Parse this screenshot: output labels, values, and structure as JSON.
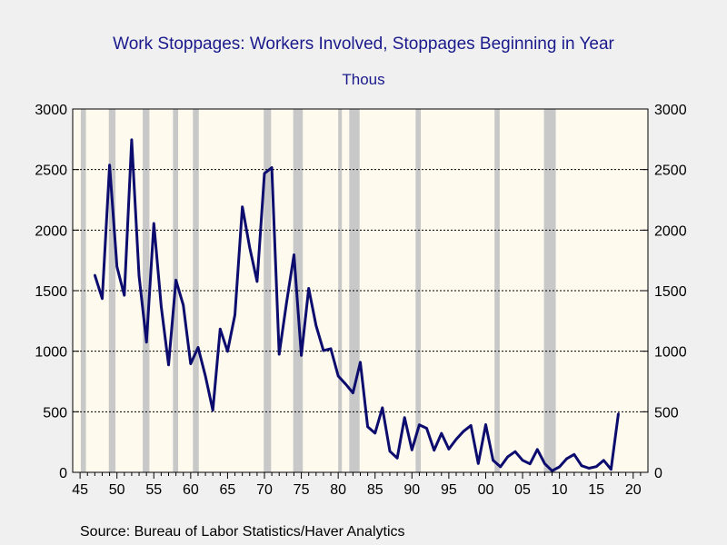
{
  "chart_data": {
    "type": "line",
    "title": "Work Stoppages: Workers Involved, Stoppages Beginning in Year",
    "subtitle": "Thous",
    "source": "Source:  Bureau of Labor Statistics/Haver Analytics",
    "x_ticks": [
      "45",
      "50",
      "55",
      "60",
      "65",
      "70",
      "75",
      "80",
      "85",
      "90",
      "95",
      "00",
      "05",
      "10",
      "15",
      "20"
    ],
    "y_ticks": [
      "0",
      "500",
      "1000",
      "1500",
      "2000",
      "2500",
      "3000"
    ],
    "ylim": [
      0,
      3000
    ],
    "xlim": [
      1944,
      2022
    ],
    "grid": "horizontal dashed",
    "line_color": "#0c0c6e",
    "plot_bg": "#fefaee",
    "recession_color": "#c8c8c8",
    "recessions": [
      [
        1945.1,
        1945.8
      ],
      [
        1948.9,
        1949.8
      ],
      [
        1953.5,
        1954.4
      ],
      [
        1957.6,
        1958.3
      ],
      [
        1960.3,
        1961.1
      ],
      [
        1969.9,
        1970.9
      ],
      [
        1973.9,
        1975.2
      ],
      [
        1980.0,
        1980.5
      ],
      [
        1981.5,
        1982.9
      ],
      [
        1990.5,
        1991.2
      ],
      [
        2001.2,
        2001.9
      ],
      [
        2007.9,
        2009.5
      ]
    ],
    "series": [
      {
        "x": [
          1947,
          1948,
          1949,
          1950,
          1951,
          1952,
          1953,
          1954,
          1955,
          1956,
          1957,
          1958,
          1959,
          1960,
          1961,
          1962,
          1963,
          1964,
          1965,
          1966,
          1967,
          1968,
          1969,
          1970,
          1971,
          1972,
          1973,
          1974,
          1975,
          1976,
          1977,
          1978,
          1979,
          1980,
          1981,
          1982,
          1983,
          1984,
          1985,
          1986,
          1987,
          1988,
          1989,
          1990,
          1991,
          1992,
          1993,
          1994,
          1995,
          1996,
          1997,
          1998,
          1999,
          2000,
          2001,
          2002,
          2003,
          2004,
          2005,
          2006,
          2007,
          2008,
          2009,
          2010,
          2011,
          2012,
          2013,
          2014,
          2015,
          2016,
          2017,
          2018
        ],
        "values": [
          1629,
          1435,
          2537,
          1698,
          1462,
          2746,
          1623,
          1075,
          2055,
          1370,
          887,
          1587,
          1381,
          896,
          1031,
          793,
          512,
          1183,
          999,
          1300,
          2192,
          1855,
          1576,
          2468,
          2516,
          975,
          1400,
          1796,
          965,
          1519,
          1212,
          1006,
          1021,
          795,
          729,
          656,
          909,
          376,
          324,
          533,
          174,
          118,
          452,
          185,
          392,
          364,
          182,
          322,
          192,
          273,
          339,
          387,
          73,
          394,
          99,
          46,
          129,
          171,
          100,
          70,
          189,
          72,
          13,
          45,
          113,
          148,
          55,
          34,
          47,
          99,
          25,
          485
        ]
      }
    ]
  }
}
